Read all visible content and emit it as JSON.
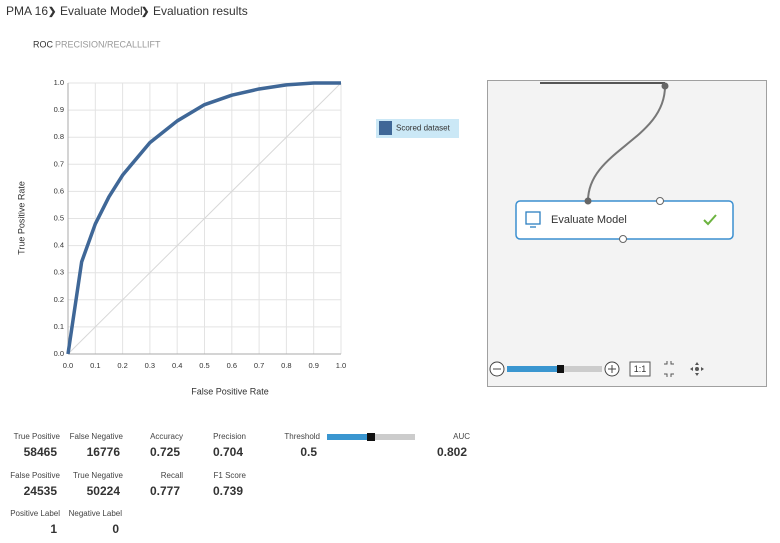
{
  "breadcrumb": [
    "PMA 16",
    "Evaluate Model",
    "Evaluation results"
  ],
  "tabs": [
    "ROC",
    "PRECISION/RECALL",
    "LIFT"
  ],
  "chart_data": {
    "type": "line",
    "x": [
      0,
      0.05,
      0.1,
      0.15,
      0.2,
      0.3,
      0.4,
      0.5,
      0.6,
      0.7,
      0.8,
      0.9,
      1.0
    ],
    "series": [
      {
        "name": "Scored dataset",
        "color": "#3f6797",
        "values": [
          0,
          0.34,
          0.48,
          0.58,
          0.66,
          0.78,
          0.86,
          0.92,
          0.955,
          0.978,
          0.993,
          1.0,
          1.0
        ]
      }
    ],
    "xlabel": "False Positive Rate",
    "ylabel": "True Positive Rate",
    "xlim": [
      0,
      1
    ],
    "ylim": [
      0,
      1
    ],
    "xticks": [
      {
        "value": 0,
        "label": "0.0"
      },
      0.1,
      0.2,
      0.3,
      0.4,
      0.5,
      0.6,
      0.7,
      0.8,
      0.9,
      {
        "value": 1,
        "label": "1.0"
      }
    ],
    "yticks": [
      {
        "value": 0,
        "label": "0.0"
      },
      0.1,
      0.2,
      0.3,
      0.4,
      0.5,
      0.6,
      0.7,
      0.8,
      0.9,
      {
        "value": 1,
        "label": "1.0"
      }
    ],
    "grid": true
  },
  "metrics": {
    "true_positive": {
      "label": "True Positive",
      "value": 58465
    },
    "false_negative": {
      "label": "False Negative",
      "value": 16776
    },
    "accuracy": {
      "label": "Accuracy",
      "value": 0.725
    },
    "precision": {
      "label": "Precision",
      "value": 0.704
    },
    "threshold": {
      "label": "Threshold",
      "value": 0.5
    },
    "auc": {
      "label": "AUC",
      "value": 0.802
    },
    "false_positive": {
      "label": "False Positive",
      "value": 24535
    },
    "true_negative": {
      "label": "True Negative",
      "value": 50224
    },
    "recall": {
      "label": "Recall",
      "value": 0.777
    },
    "f1_score": {
      "label": "F1 Score",
      "value": 0.739
    },
    "positive_label": {
      "label": "Positive Label",
      "value": 1
    },
    "negative_label": {
      "label": "Negative Label",
      "value": 0
    }
  },
  "diagram": {
    "node": "Evaluate Model",
    "zoom_reset": "1:1"
  }
}
